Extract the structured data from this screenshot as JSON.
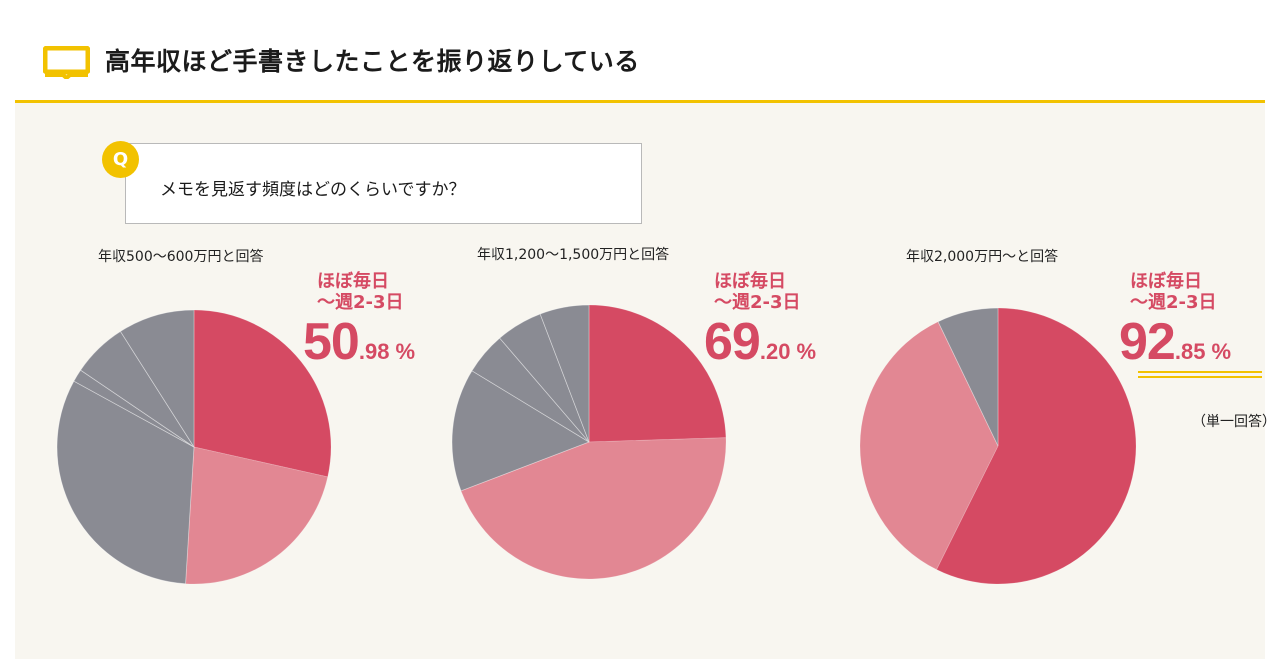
{
  "header": {
    "title": "高年収ほど手書きしたことを振り返りしている"
  },
  "question": {
    "badge": "Q",
    "text": "メモを見返す頻度はどのくらいですか？"
  },
  "colors": {
    "accent": "#f2c200",
    "highlight_text": "#d54a63",
    "slice_daily": "#d54a63",
    "slice_weekly": "#e28793",
    "slice_other": "#8a8b93",
    "background": "#f8f6f0"
  },
  "groups": [
    {
      "label": "年収500～600万円と回答",
      "highlight_line1": "ほぼ毎日",
      "highlight_line2": "～週2-3日",
      "pct_int": "50",
      "pct_dec": ".98",
      "pct_sign": "%"
    },
    {
      "label": "年収1,200～1,500万円と回答",
      "highlight_line1": "ほぼ毎日",
      "highlight_line2": "～週2-3日",
      "pct_int": "69",
      "pct_dec": ".20",
      "pct_sign": "%"
    },
    {
      "label": "年収2,000万円～と回答",
      "highlight_line1": "ほぼ毎日",
      "highlight_line2": "～週2-3日",
      "pct_int": "92",
      "pct_dec": ".85",
      "pct_sign": "%",
      "note": "（単一回答）"
    }
  ],
  "chart_data": [
    {
      "type": "pie",
      "title": "年収500～600万円と回答",
      "highlight_total": 50.98,
      "slices": [
        {
          "category": "daily",
          "value": 28.5
        },
        {
          "category": "weekly",
          "value": 22.48
        },
        {
          "category": "other",
          "value": 32.0
        },
        {
          "category": "other",
          "value": 1.5
        },
        {
          "category": "other",
          "value": 6.5
        },
        {
          "category": "other",
          "value": 9.02
        }
      ]
    },
    {
      "type": "pie",
      "title": "年収1,200～1,500万円と回答",
      "highlight_total": 69.2,
      "slices": [
        {
          "category": "daily",
          "value": 24.5
        },
        {
          "category": "weekly",
          "value": 44.7
        },
        {
          "category": "other",
          "value": 14.5
        },
        {
          "category": "other",
          "value": 5.0
        },
        {
          "category": "other",
          "value": 5.5
        },
        {
          "category": "other",
          "value": 5.8
        }
      ]
    },
    {
      "type": "pie",
      "title": "年収2,000万円～と回答",
      "highlight_total": 92.85,
      "slices": [
        {
          "category": "daily",
          "value": 57.35
        },
        {
          "category": "weekly",
          "value": 35.5
        },
        {
          "category": "other",
          "value": 7.15
        }
      ]
    }
  ]
}
